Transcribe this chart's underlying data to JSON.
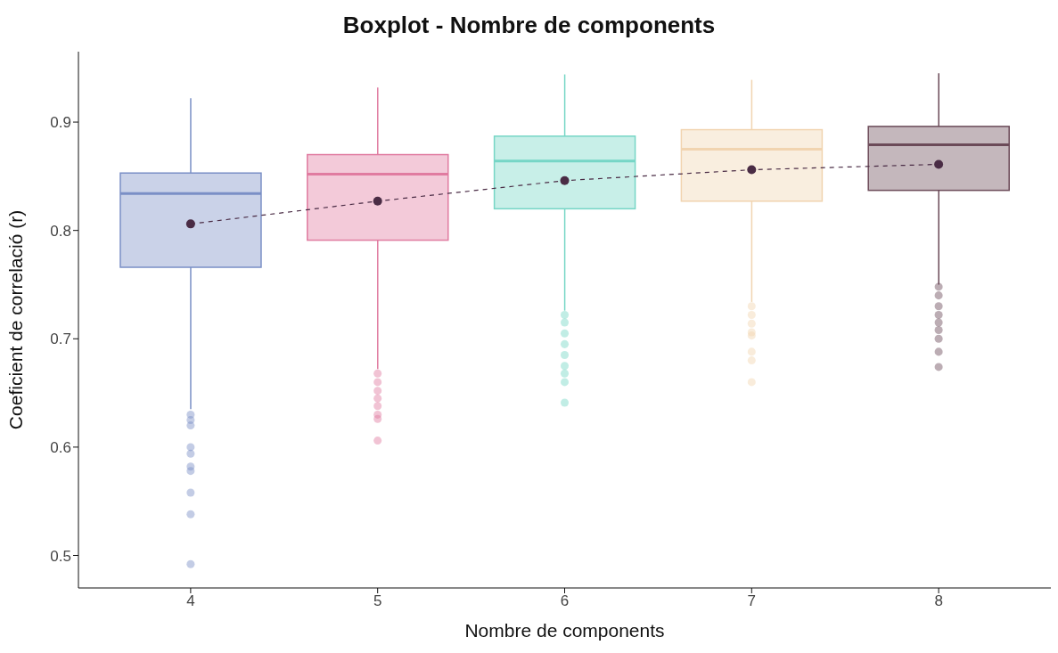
{
  "chart_data": {
    "type": "box",
    "title": "Boxplot - Nombre de components",
    "xlabel": "Nombre de components",
    "ylabel": "Coeficient de correlació (r)",
    "categories": [
      "4",
      "5",
      "6",
      "7",
      "8"
    ],
    "ylim": [
      0.47,
      0.965
    ],
    "yticks": [
      0.5,
      0.6,
      0.7,
      0.8,
      0.9
    ],
    "grid": false,
    "legend": false,
    "series": [
      {
        "colors": [
          "#7a8fc6",
          "#e07ba0",
          "#76d6c6",
          "#f1d4b0",
          "#6b4a58"
        ],
        "boxes": [
          {
            "low": 0.635,
            "q1": 0.766,
            "median": 0.834,
            "q3": 0.853,
            "high": 0.922,
            "outliers": [
              0.63,
              0.625,
              0.62,
              0.6,
              0.594,
              0.582,
              0.578,
              0.558,
              0.538,
              0.492
            ]
          },
          {
            "low": 0.672,
            "q1": 0.791,
            "median": 0.852,
            "q3": 0.87,
            "high": 0.932,
            "outliers": [
              0.668,
              0.66,
              0.652,
              0.645,
              0.638,
              0.63,
              0.626,
              0.606
            ]
          },
          {
            "low": 0.726,
            "q1": 0.82,
            "median": 0.864,
            "q3": 0.887,
            "high": 0.944,
            "outliers": [
              0.722,
              0.715,
              0.705,
              0.695,
              0.685,
              0.675,
              0.668,
              0.66,
              0.641
            ]
          },
          {
            "low": 0.734,
            "q1": 0.827,
            "median": 0.875,
            "q3": 0.893,
            "high": 0.939,
            "outliers": [
              0.73,
              0.722,
              0.714,
              0.706,
              0.703,
              0.688,
              0.68,
              0.66
            ]
          },
          {
            "low": 0.75,
            "q1": 0.837,
            "median": 0.879,
            "q3": 0.896,
            "high": 0.945,
            "outliers": [
              0.748,
              0.74,
              0.73,
              0.722,
              0.715,
              0.708,
              0.7,
              0.688,
              0.674
            ]
          }
        ]
      },
      {
        "type": "line",
        "x": [
          "4",
          "5",
          "6",
          "7",
          "8"
        ],
        "values": [
          0.806,
          0.827,
          0.846,
          0.856,
          0.861
        ],
        "color": "#4a2c45",
        "line_style": "dashed",
        "marker": "circle"
      }
    ]
  }
}
